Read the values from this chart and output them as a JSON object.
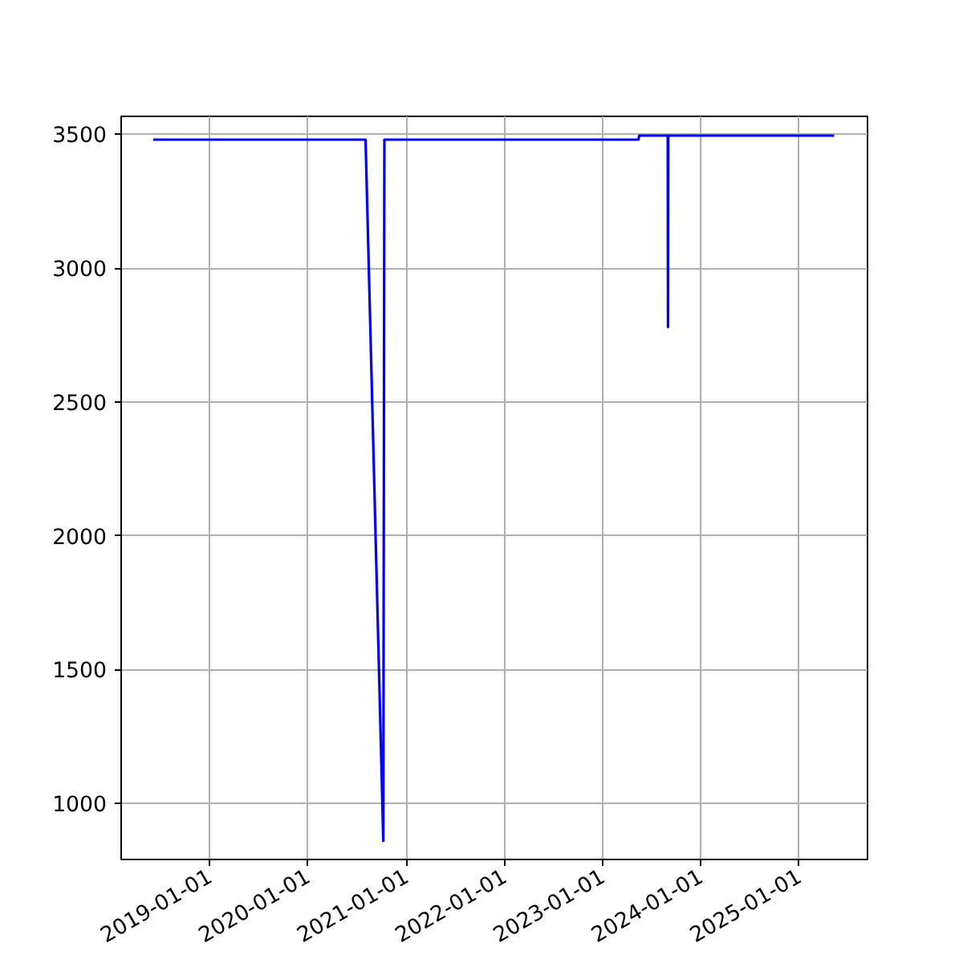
{
  "chart_data": {
    "type": "line",
    "x": [
      "2018-06-05",
      "2020-08-03",
      "2020-10-08",
      "2020-10-12",
      "2023-05-15",
      "2023-05-18",
      "2023-09-01",
      "2023-09-02",
      "2023-09-03",
      "2025-05-12"
    ],
    "series": [
      {
        "color": "#0000ff",
        "values": [
          3480,
          3480,
          860,
          3480,
          3480,
          3495,
          3495,
          2780,
          3495,
          3495
        ]
      }
    ],
    "xlim": [
      "2018-02-06",
      "2025-09-13"
    ],
    "xticks": [
      "2019-01-01",
      "2020-01-01",
      "2021-01-01",
      "2022-01-01",
      "2023-01-01",
      "2024-01-01",
      "2025-01-01"
    ],
    "ylim": [
      790,
      3567
    ],
    "yticks": [
      1000,
      1500,
      2000,
      2500,
      3000,
      3500
    ],
    "grid": true,
    "marker": "none",
    "line_style": "solid"
  }
}
